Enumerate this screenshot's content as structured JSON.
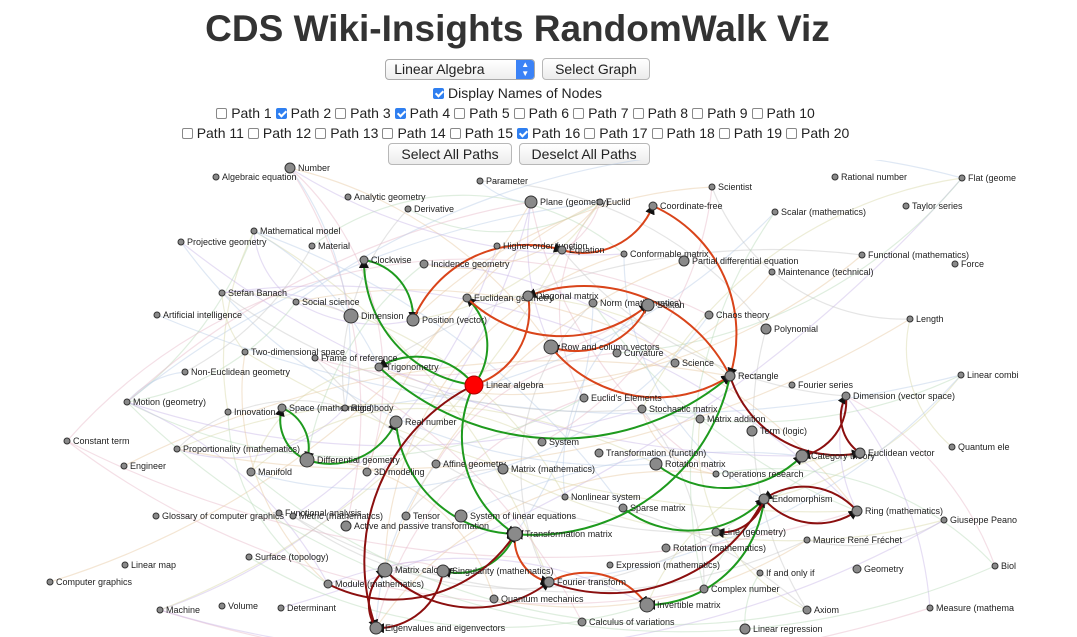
{
  "title": "CDS Wiki-Insights RandomWalk Viz",
  "graph_select": {
    "selected": "Linear Algebra"
  },
  "select_graph_button": "Select Graph",
  "display_names": {
    "label": "Display Names of Nodes",
    "checked": true
  },
  "paths_row1": [
    {
      "label": "Path 1",
      "checked": false
    },
    {
      "label": "Path 2",
      "checked": true
    },
    {
      "label": "Path 3",
      "checked": false
    },
    {
      "label": "Path 4",
      "checked": true
    },
    {
      "label": "Path 5",
      "checked": false
    },
    {
      "label": "Path 6",
      "checked": false
    },
    {
      "label": "Path 7",
      "checked": false
    },
    {
      "label": "Path 8",
      "checked": false
    },
    {
      "label": "Path 9",
      "checked": false
    },
    {
      "label": "Path 10",
      "checked": false
    }
  ],
  "paths_row2": [
    {
      "label": "Path 11",
      "checked": false
    },
    {
      "label": "Path 12",
      "checked": false
    },
    {
      "label": "Path 13",
      "checked": false
    },
    {
      "label": "Path 14",
      "checked": false
    },
    {
      "label": "Path 15",
      "checked": false
    },
    {
      "label": "Path 16",
      "checked": true
    },
    {
      "label": "Path 17",
      "checked": false
    },
    {
      "label": "Path 18",
      "checked": false
    },
    {
      "label": "Path 19",
      "checked": false
    },
    {
      "label": "Path 20",
      "checked": false
    }
  ],
  "select_all_button": "Select All Paths",
  "deselect_all_button": "Deselct All Paths",
  "colors": {
    "root_node": "#ff0000",
    "path_green": "#1e9a1e",
    "path_orange": "#d9441a",
    "path_darkred": "#8b0f0f",
    "checkbox_on": "#2f7ff0"
  },
  "nodes": [
    {
      "name": "Number"
    },
    {
      "name": "Algebraic equation"
    },
    {
      "name": "Parameter"
    },
    {
      "name": "Scientist"
    },
    {
      "name": "Rational number"
    },
    {
      "name": "Flat (geome"
    },
    {
      "name": "Analytic geometry"
    },
    {
      "name": "Derivative"
    },
    {
      "name": "Plane (geometry)"
    },
    {
      "name": "Euclid"
    },
    {
      "name": "Coordinate-free"
    },
    {
      "name": "Scalar (mathematics)"
    },
    {
      "name": "Taylor series"
    },
    {
      "name": "Mathematical model"
    },
    {
      "name": "Projective geometry"
    },
    {
      "name": "Material"
    },
    {
      "name": "Higher-order function"
    },
    {
      "name": "Equation"
    },
    {
      "name": "Conformable matrix"
    },
    {
      "name": "Partial differential equation"
    },
    {
      "name": "Functional (mathematics)"
    },
    {
      "name": "Force"
    },
    {
      "name": "Clockwise"
    },
    {
      "name": "Incidence geometry"
    },
    {
      "name": "Maintenance (technical)"
    },
    {
      "name": "Stefan Banach"
    },
    {
      "name": "Social science"
    },
    {
      "name": "Euclidean geometry"
    },
    {
      "name": "Diagonal matrix"
    },
    {
      "name": "Norm (mathematics)"
    },
    {
      "name": "Soliton"
    },
    {
      "name": "Artificial intelligence"
    },
    {
      "name": "Dimension"
    },
    {
      "name": "Position (vector)"
    },
    {
      "name": "Chaos theory"
    },
    {
      "name": "Polynomial"
    },
    {
      "name": "Length"
    },
    {
      "name": "Two-dimensional space"
    },
    {
      "name": "Frame of reference"
    },
    {
      "name": "Row and column vectors"
    },
    {
      "name": "Curvature"
    },
    {
      "name": "Non-Euclidean geometry"
    },
    {
      "name": "Trigonometry"
    },
    {
      "name": "Science"
    },
    {
      "name": "Rectangle"
    },
    {
      "name": "Linear combi"
    },
    {
      "name": "Linear algebra"
    },
    {
      "name": "Fourier series"
    },
    {
      "name": "Motion (geometry)"
    },
    {
      "name": "Euclid's Elements"
    },
    {
      "name": "Dimension (vector space)"
    },
    {
      "name": "Innovation"
    },
    {
      "name": "Space (mathematics)"
    },
    {
      "name": "Rigid body"
    },
    {
      "name": "Stochastic matrix"
    },
    {
      "name": "Real number"
    },
    {
      "name": "Matrix addition"
    },
    {
      "name": "Term (logic)"
    },
    {
      "name": "Constant term"
    },
    {
      "name": "System"
    },
    {
      "name": "Quantum ele"
    },
    {
      "name": "Proportionality (mathematics)"
    },
    {
      "name": "Differential geometry"
    },
    {
      "name": "Transformation (function)"
    },
    {
      "name": "Category theory"
    },
    {
      "name": "Euclidean vector"
    },
    {
      "name": "Engineer"
    },
    {
      "name": "Manifold"
    },
    {
      "name": "3D modeling"
    },
    {
      "name": "Affine geometry"
    },
    {
      "name": "Matrix (mathematics)"
    },
    {
      "name": "Rotation matrix"
    },
    {
      "name": "Operations research"
    },
    {
      "name": "Nonlinear system"
    },
    {
      "name": "Endomorphism"
    },
    {
      "name": "Glossary of computer graphics"
    },
    {
      "name": "Functional analysis"
    },
    {
      "name": "Metric (mathematics)"
    },
    {
      "name": "Tensor"
    },
    {
      "name": "System of linear equations"
    },
    {
      "name": "Sparse matrix"
    },
    {
      "name": "Ring (mathematics)"
    },
    {
      "name": "Giuseppe Peano"
    },
    {
      "name": "Active and passive transformation"
    },
    {
      "name": "Transformation matrix"
    },
    {
      "name": "Line (geometry)"
    },
    {
      "name": "Maurice René Fréchet"
    },
    {
      "name": "Rotation (mathematics)"
    },
    {
      "name": "Surface (topology)"
    },
    {
      "name": "Linear map"
    },
    {
      "name": "Expression (mathematics)"
    },
    {
      "name": "Matrix calculus"
    },
    {
      "name": "Singularity (mathematics)"
    },
    {
      "name": "If and only if"
    },
    {
      "name": "Geometry"
    },
    {
      "name": "Biol"
    },
    {
      "name": "Computer graphics"
    },
    {
      "name": "Module (mathematics)"
    },
    {
      "name": "Fourier transform"
    },
    {
      "name": "Complex number"
    },
    {
      "name": "Quantum mechanics"
    },
    {
      "name": "Machine"
    },
    {
      "name": "Volume"
    },
    {
      "name": "Determinant"
    },
    {
      "name": "Invertible matrix"
    },
    {
      "name": "Axiom"
    },
    {
      "name": "Measure (mathema"
    },
    {
      "name": "Calculus of variations"
    },
    {
      "name": "Eigenvalues and eigenvectors"
    },
    {
      "name": "Linear regression"
    }
  ]
}
